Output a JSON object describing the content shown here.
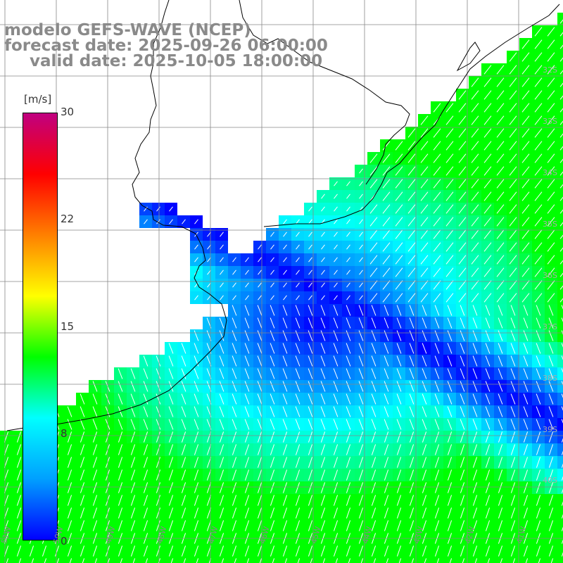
{
  "title": {
    "line1": "modelo GEFS-WAVE (NCEP)",
    "line2": "forecast date: 2025-09-26 06:00:00",
    "line3": "valid date: 2025-10-05 18:00:00"
  },
  "colorbar": {
    "unit": "[m/s]",
    "ticks": [
      "30",
      "22",
      "15",
      "8",
      "0"
    ],
    "colors": [
      "#0000ff",
      "#00a0ff",
      "#00ffff",
      "#00ff00",
      "#ffff00",
      "#ff8000",
      "#ff0000",
      "#c00080"
    ]
  },
  "axes": {
    "lat_labels": [
      "32S",
      "33S",
      "34S",
      "35S",
      "36S",
      "37S",
      "38S",
      "39S",
      "40S"
    ],
    "lon_labels": [
      "51W",
      "50W",
      "49W",
      "48W",
      "47W",
      "46W",
      "45W",
      "44W",
      "43W",
      "42W",
      "41W"
    ]
  },
  "colors": {
    "land": "#ffffff",
    "grid": "#888888",
    "coast": "#000000",
    "arrow": "#ffffff"
  }
}
